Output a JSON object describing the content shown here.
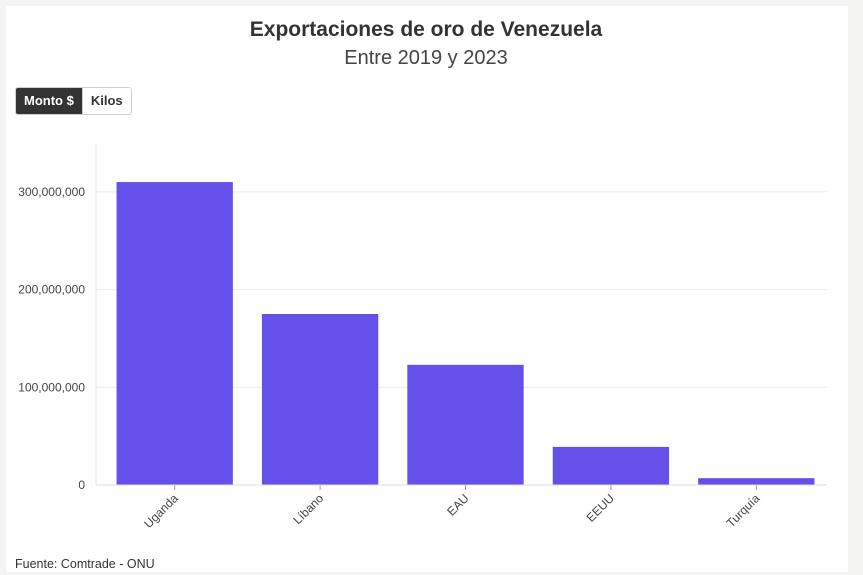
{
  "title": "Exportaciones de oro de Venezuela",
  "subtitle": "Entre 2019 y 2023",
  "toggle": {
    "options": [
      "Monto $",
      "Kilos"
    ],
    "active": "Monto $"
  },
  "source": "Fuente: Comtrade - ONU",
  "chart_data": {
    "type": "bar",
    "title": "Exportaciones de oro de Venezuela",
    "subtitle": "Entre 2019 y 2023",
    "categories": [
      "Uganda",
      "Líbano",
      "EAU",
      "EEUU",
      "Turquía"
    ],
    "values": [
      310000000,
      175000000,
      123000000,
      39000000,
      7000000
    ],
    "xlabel": "",
    "ylabel": "",
    "ylim": [
      0,
      350000000
    ],
    "yticks": [
      0,
      100000000,
      200000000,
      300000000
    ],
    "ytick_labels": [
      "0",
      "100,000,000",
      "200,000,000",
      "300,000,000"
    ],
    "grid": true,
    "legend": "none",
    "bar_color": "#6550ea"
  }
}
